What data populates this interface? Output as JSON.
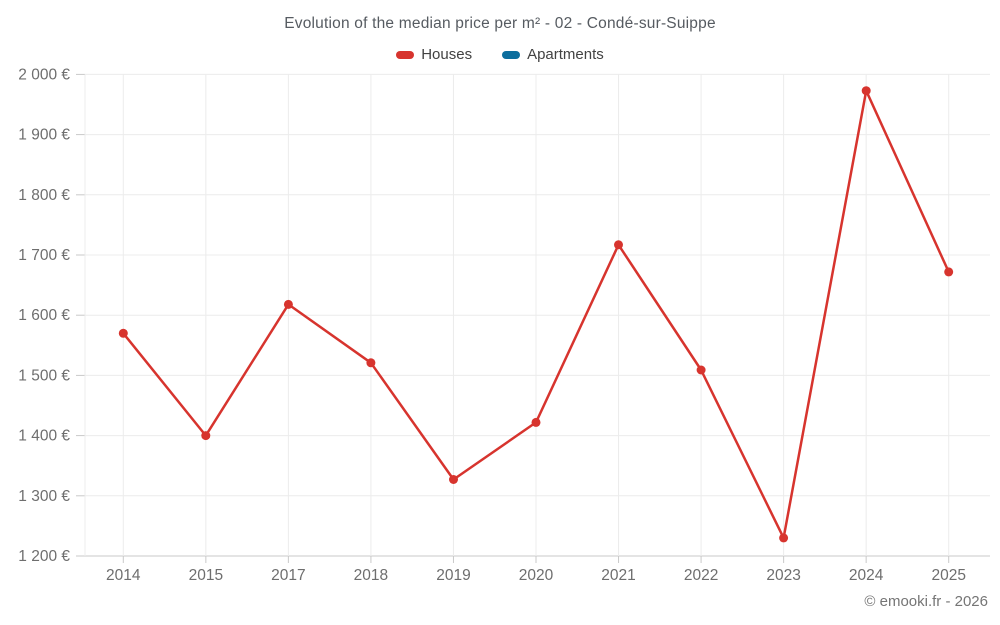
{
  "title": "Evolution of the median price per m² - 02 - Condé-sur-Suippe",
  "footer": "© emooki.fr - 2026",
  "legend": {
    "items": [
      {
        "label": "Houses",
        "color": "#d7342e"
      },
      {
        "label": "Apartments",
        "color": "#0d6e9e"
      }
    ]
  },
  "colors": {
    "houses_line": "#d7342e",
    "apartments_line": "#0d6e9e",
    "gridline": "#ececec",
    "axis_line": "#c9c9c9",
    "tick": "#c9c9c9",
    "axis_text": "#6e6e6e",
    "title_text": "#565b61",
    "background": "#ffffff"
  },
  "chart_data": {
    "type": "line",
    "categories": [
      "2014",
      "2015",
      "2017",
      "2018",
      "2019",
      "2020",
      "2021",
      "2022",
      "2023",
      "2024",
      "2025"
    ],
    "series": [
      {
        "name": "Houses",
        "color": "#d7342e",
        "values": [
          1570,
          1400,
          1618,
          1521,
          1327,
          1422,
          1717,
          1509,
          1230,
          1973,
          1672
        ]
      },
      {
        "name": "Apartments",
        "color": "#0d6e9e",
        "values": []
      }
    ],
    "title": "Evolution of the median price per m² - 02 - Condé-sur-Suippe",
    "xlabel": "",
    "ylabel": "",
    "ylim": [
      1200,
      2000
    ],
    "ytick_step": 100,
    "ytick_labels": [
      "1 200 €",
      "1 300 €",
      "1 400 €",
      "1 500 €",
      "1 600 €",
      "1 700 €",
      "1 800 €",
      "1 900 €",
      "2 000 €"
    ],
    "grid": true,
    "legend_position": "top"
  }
}
